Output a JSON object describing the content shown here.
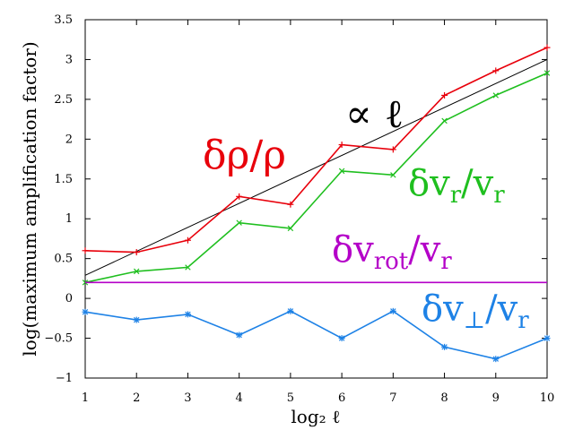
{
  "chart_data": {
    "type": "line",
    "title": "",
    "xlabel": "log₂ ℓ",
    "ylabel": "log(maximum amplification factor)",
    "xlim": [
      1,
      10
    ],
    "ylim": [
      -1,
      3.5
    ],
    "x_ticks": [
      1,
      2,
      3,
      4,
      5,
      6,
      7,
      8,
      9,
      10
    ],
    "y_ticks": [
      -1,
      -0.5,
      0,
      0.5,
      1,
      1.5,
      2,
      2.5,
      3,
      3.5
    ],
    "x_tick_labels": [
      "1",
      "2",
      "3",
      "4",
      "5",
      "6",
      "7",
      "8",
      "9",
      "10"
    ],
    "y_tick_labels": [
      "−1",
      "−0.5",
      "0",
      "0.5",
      "1",
      "1.5",
      "2",
      "2.5",
      "3",
      "3.5"
    ],
    "grid": false,
    "legend": "none",
    "x": [
      1,
      2,
      3,
      4,
      5,
      6,
      7,
      8,
      9,
      10
    ],
    "series": [
      {
        "name": "δρ/ρ",
        "color": "#e8000b",
        "marker": "plus",
        "values": [
          0.6,
          0.58,
          0.73,
          1.28,
          1.18,
          1.93,
          1.87,
          2.55,
          2.86,
          3.15
        ]
      },
      {
        "name": "δv_r/v_r",
        "color": "#1fbf1f",
        "marker": "cross",
        "values": [
          0.2,
          0.34,
          0.39,
          0.95,
          0.88,
          1.6,
          1.55,
          2.23,
          2.55,
          2.83
        ]
      },
      {
        "name": "δv_rot/v_r",
        "color": "#b400c8",
        "marker": "none",
        "values": [
          0.2,
          0.2,
          0.2,
          0.2,
          0.2,
          0.2,
          0.2,
          0.2,
          0.2,
          0.2
        ]
      },
      {
        "name": "δv_⊥/v_r",
        "color": "#1e82e6",
        "marker": "star",
        "values": [
          -0.17,
          -0.27,
          -0.2,
          -0.46,
          -0.16,
          -0.5,
          -0.16,
          -0.61,
          -0.76,
          -0.5
        ]
      }
    ],
    "reference_line": {
      "name": "∝ ℓ",
      "color": "#000000",
      "x": [
        1,
        10
      ],
      "values": [
        0.29,
        3.0
      ]
    }
  },
  "annotations": {
    "proportional": {
      "text": "∝ ℓ",
      "color": "#000000"
    },
    "density": {
      "text": "δρ/ρ",
      "color": "#e8000b"
    },
    "radial": {
      "prefix": "δv",
      "sub": "r",
      "mid": "/v",
      "sub2": "r",
      "color": "#1fbf1f"
    },
    "rotational": {
      "prefix": "δv",
      "sub": "rot",
      "mid": "/v",
      "sub2": "r",
      "color": "#b400c8"
    },
    "perpendicular": {
      "prefix": "δv",
      "sub": "⊥",
      "mid": "/v",
      "sub2": "r",
      "color": "#1e82e6"
    }
  }
}
